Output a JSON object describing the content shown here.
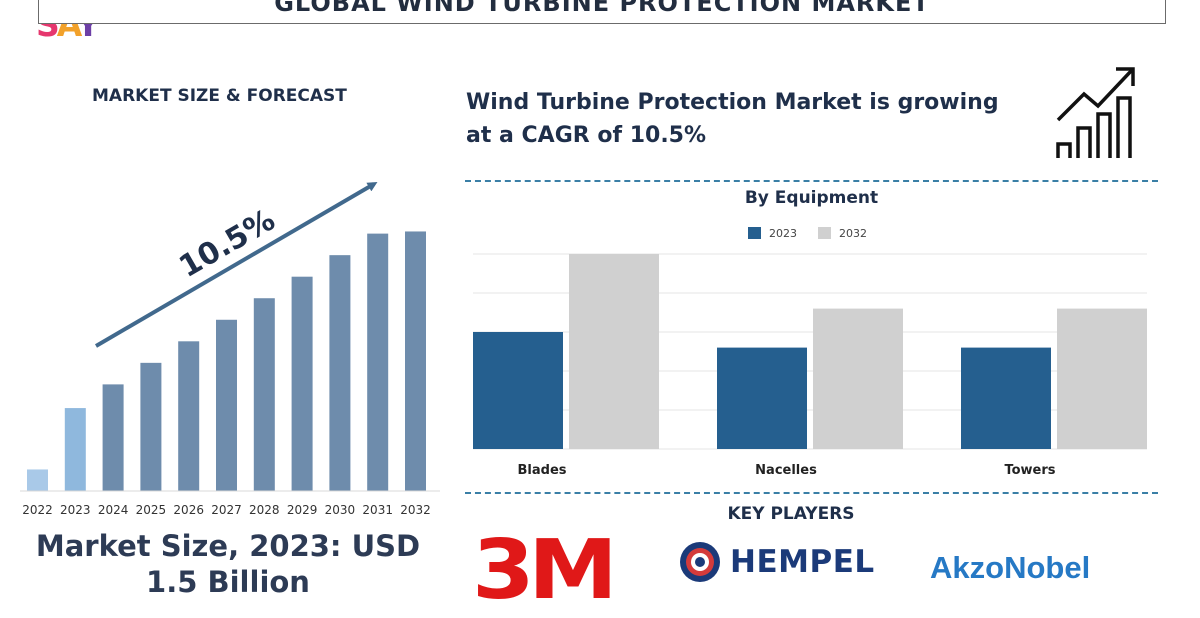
{
  "brand": {
    "s": "S",
    "a": "A",
    "y": "Y"
  },
  "header": {
    "title": "GLOBAL WIND TURBINE PROTECTION MARKET"
  },
  "left": {
    "heading": "MARKET SIZE & FORECAST",
    "cagr_label": "10.5%",
    "market_size_line1": "Market Size, 2023: USD",
    "market_size_line2": "1.5 Billion"
  },
  "right": {
    "cagr_text_line1": "Wind Turbine Protection Market is growing",
    "cagr_text_line2": "at a CAGR of 10.5%",
    "equipment_title": "By Equipment",
    "key_players_title": "KEY PLAYERS",
    "players": [
      "3M",
      "HEMPEL",
      "AkzoNobel"
    ]
  },
  "colors": {
    "bar_base": "#6e8cac",
    "bar_2023": "#8fb8dd",
    "bar_2022": "#a9c9e8",
    "arrow": "#41698d",
    "series_2023": "#255f8f",
    "series_2032": "#d0d0d0"
  },
  "chart_data": [
    {
      "type": "bar",
      "title": "MARKET SIZE & FORECAST",
      "categories": [
        "2022",
        "2023",
        "2024",
        "2025",
        "2026",
        "2027",
        "2028",
        "2029",
        "2030",
        "2031",
        "2032"
      ],
      "values": [
        1.0,
        3.85,
        4.95,
        5.95,
        6.95,
        7.95,
        8.95,
        9.95,
        10.95,
        11.95,
        12.05
      ],
      "ylim": [
        0,
        13
      ],
      "annotation": "10.5%",
      "grid": false
    },
    {
      "type": "bar",
      "title": "By Equipment",
      "categories": [
        "Blades",
        "Nacelles",
        "Towers"
      ],
      "series": [
        {
          "name": "2023",
          "values": [
            3.0,
            2.6,
            2.6
          ]
        },
        {
          "name": "2032",
          "values": [
            5.0,
            3.6,
            3.6
          ]
        }
      ],
      "ylim": [
        0,
        5
      ],
      "grid": true,
      "legend": "top"
    }
  ]
}
